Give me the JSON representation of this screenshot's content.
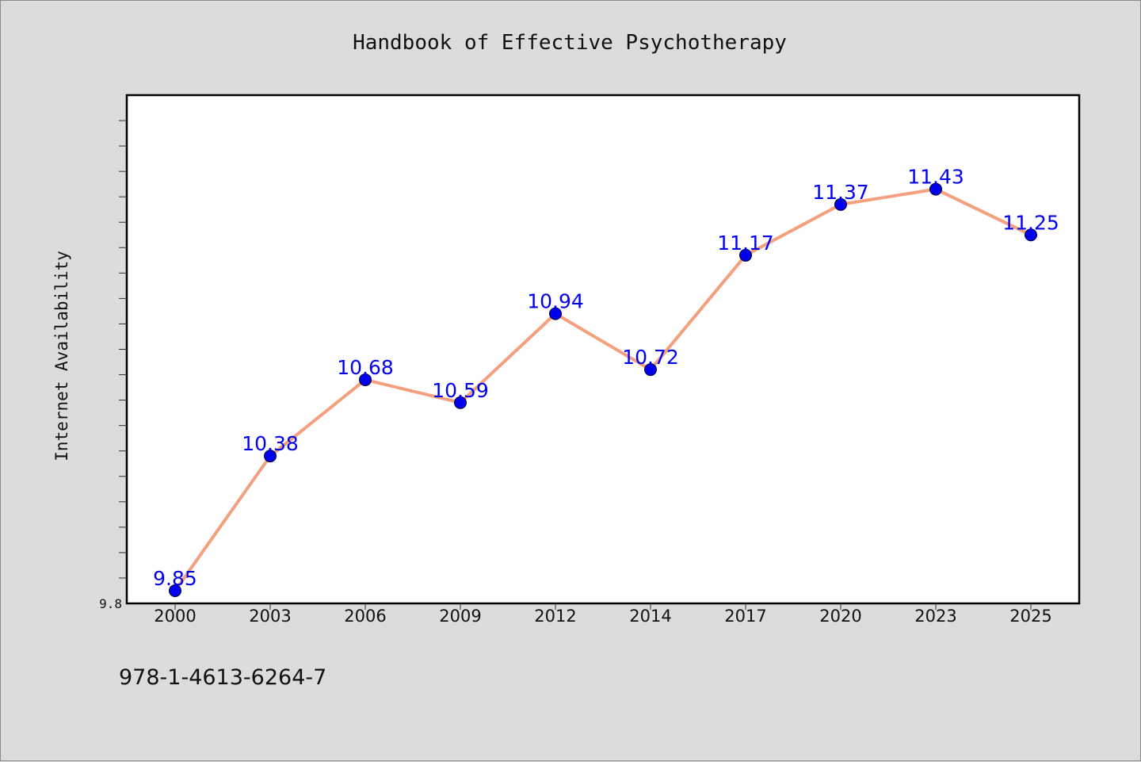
{
  "chart_data": {
    "type": "line",
    "title": "Handbook of Effective Psychotherapy",
    "xlabel": "",
    "ylabel": "Internet Availability",
    "categories": [
      "2000",
      "2003",
      "2006",
      "2009",
      "2012",
      "2014",
      "2017",
      "2020",
      "2023",
      "2025"
    ],
    "series": [
      {
        "values": [
          9.85,
          10.38,
          10.68,
          10.59,
          10.94,
          10.72,
          11.17,
          11.37,
          11.43,
          11.25
        ]
      }
    ],
    "data_labels": [
      "9.85",
      "10.38",
      "10.68",
      "10.59",
      "10.94",
      "10.72",
      "11.17",
      "11.37",
      "11.43",
      "11.25"
    ],
    "ylim": [
      9.8,
      11.8
    ],
    "y_tick_labels": [
      "9.8"
    ],
    "grid": false,
    "legend": "none",
    "colors": {
      "line": "#f4a07e",
      "marker": "#0000ee",
      "label": "#0000ee",
      "background": "#dcdcdc",
      "plot_area": "#ffffff"
    }
  },
  "footer": {
    "isbn": "978-1-4613-6264-7"
  }
}
